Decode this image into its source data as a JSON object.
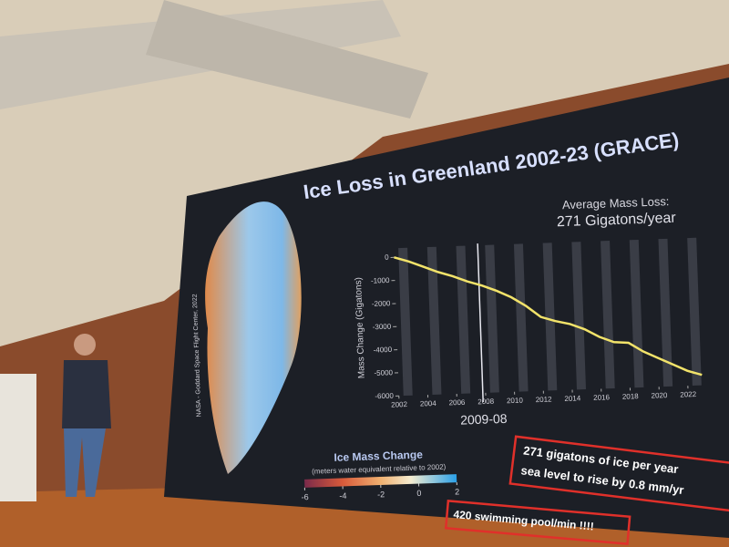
{
  "slide": {
    "title": "Ice Loss in Greenland 2002-23 (GRACE)",
    "credit": "NASA - Goddard Space Flight Center, 2022",
    "average_label": "Average Mass Loss:",
    "average_value": "271 Gigatons/year",
    "marker_label": "2009-08",
    "box_lines": [
      "271 gigatons of ice per year",
      "sea level to rise by 0.8 mm/yr"
    ],
    "pool_note": "420 swimming pool/min !!!!",
    "colorbar": {
      "title": "Ice Mass Change",
      "subtitle": "(meters water equivalent relative to 2002)",
      "lim": [
        -6,
        2
      ],
      "ticks": [
        -6,
        -4,
        -2,
        0,
        2
      ]
    }
  },
  "chart_data": {
    "type": "line",
    "y_label": "Mass Change (Gigatons)",
    "x": [
      2002,
      2003,
      2004,
      2005,
      2006,
      2007,
      2008,
      2009,
      2010,
      2011,
      2012,
      2013,
      2014,
      2015,
      2016,
      2017,
      2018,
      2019,
      2020,
      2021,
      2022,
      2023
    ],
    "series": [
      {
        "color": "#f2e36a",
        "values": [
          0,
          -200,
          -450,
          -700,
          -900,
          -1150,
          -1350,
          -1600,
          -1900,
          -2300,
          -2800,
          -3000,
          -3150,
          -3400,
          -3750,
          -4000,
          -4050,
          -4450,
          -4750,
          -5050,
          -5350,
          -5550
        ]
      }
    ],
    "xlim": [
      2001,
      2023
    ],
    "ylim": [
      -6000,
      0
    ],
    "xticks": [
      2002,
      2004,
      2006,
      2008,
      2010,
      2012,
      2014,
      2016,
      2018,
      2020,
      2022
    ],
    "yticks": [
      0,
      -1000,
      -2000,
      -3000,
      -4000,
      -5000,
      -6000
    ]
  }
}
